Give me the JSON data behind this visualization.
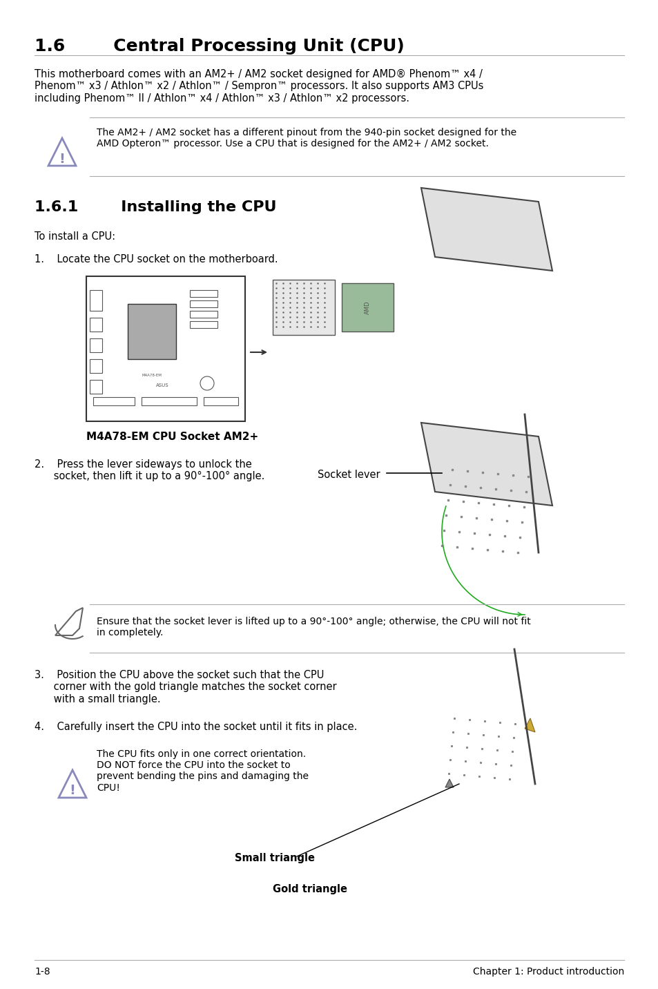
{
  "bg_color": "#ffffff",
  "title": "1.6        Central Processing Unit (CPU)",
  "title_fontsize": 18,
  "body_fontsize": 10.5,
  "small_fontsize": 9.5,
  "section_title": "1.6.1        Installing the CPU",
  "section_fontsize": 16,
  "paragraph1": "This motherboard comes with an AM2+ / AM2 socket designed for AMD® Phenom™ x4 /\nPhenom™ x3 / Athlon™ x2 / Athlon™ / Sempron™ processors. It also supports AM3 CPUs\nincluding Phenom™ II / Athlon™ x4 / Athlon™ x3 / Athlon™ x2 processors.",
  "warning1": "The AM2+ / AM2 socket has a different pinout from the 940-pin socket designed for the\nAMD Opteron™ processor. Use a CPU that is designed for the AM2+ / AM2 socket.",
  "to_install": "To install a CPU:",
  "step1": "1.    Locate the CPU socket on the motherboard.",
  "mb_label": "M4A78-EM CPU Socket AM2+",
  "step2_left": "2.    Press the lever sideways to unlock the\n      socket, then lift it up to a 90°-100° angle.",
  "socket_lever_label": "Socket lever",
  "warning2": "Ensure that the socket lever is lifted up to a 90°-100° angle; otherwise, the CPU will not fit\nin completely.",
  "step3": "3.    Position the CPU above the socket such that the CPU\n      corner with the gold triangle matches the socket corner\n      with a small triangle.",
  "step4": "4.    Carefully insert the CPU into the socket until it fits in place.",
  "warning3": "The CPU fits only in one correct orientation.\nDO NOT force the CPU into the socket to\nprevent bending the pins and damaging the\nCPU!",
  "small_triangle_label": "Small triangle",
  "gold_triangle_label": "Gold triangle",
  "footer_left": "1-8",
  "footer_right": "Chapter 1: Product introduction",
  "line_color": "#cccccc",
  "warning_icon_color": "#8888cc",
  "green_color": "#22aa22",
  "text_color": "#000000"
}
